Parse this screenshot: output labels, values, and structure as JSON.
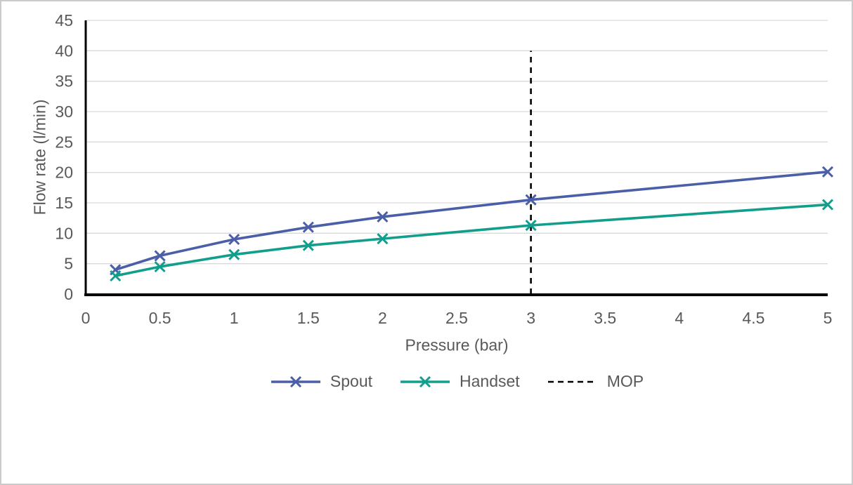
{
  "figure": {
    "background_color": "#ffffff",
    "border_color": "#cbcbcb",
    "text_color": "#595959",
    "gridline_color": "#d9d9d9",
    "axis_line_color": "#000000"
  },
  "chart_data": {
    "type": "line",
    "title": "",
    "xlabel": "Pressure (bar)",
    "ylabel": "Flow rate (l/min)",
    "xlim": [
      0,
      5
    ],
    "ylim": [
      0,
      45
    ],
    "xticks": [
      0,
      0.5,
      1,
      1.5,
      2,
      2.5,
      3,
      3.5,
      4,
      4.5,
      5
    ],
    "yticks": [
      0,
      5,
      10,
      15,
      20,
      25,
      30,
      35,
      40,
      45
    ],
    "grid": "horizontal",
    "legend_position": "bottom",
    "x": [
      0.2,
      0.5,
      1,
      1.5,
      2,
      3,
      5
    ],
    "series": [
      {
        "name": "Spout",
        "color": "#4a5fa8",
        "marker": "x",
        "values": [
          4.0,
          6.3,
          9.0,
          11.0,
          12.7,
          15.5,
          20.1
        ]
      },
      {
        "name": "Handset",
        "color": "#129e8d",
        "marker": "x",
        "values": [
          3.0,
          4.5,
          6.5,
          8.0,
          9.1,
          11.3,
          14.7
        ]
      }
    ],
    "reference_line": {
      "name": "MOP",
      "orientation": "vertical",
      "x": 3,
      "y_bottom": 0,
      "y_top": 40,
      "color": "#000000",
      "style": "dashed"
    }
  }
}
